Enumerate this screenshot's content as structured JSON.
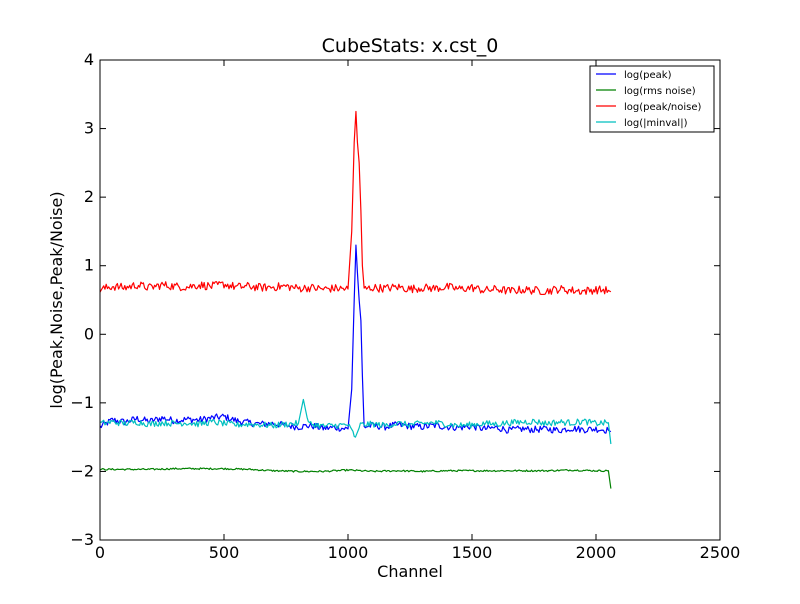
{
  "chart_data": {
    "type": "line",
    "title": "CubeStats: x.cst_0",
    "xlabel": "Channel",
    "ylabel": "log(Peak,Noise,Peak/Noise)",
    "xlim": [
      0,
      2500
    ],
    "ylim": [
      -3,
      4
    ],
    "xticks": [
      0,
      500,
      1000,
      1500,
      2000,
      2500
    ],
    "yticks": [
      -3,
      -2,
      -1,
      0,
      1,
      2,
      3,
      4
    ],
    "xtick_labels": [
      "0",
      "500",
      "1000",
      "1500",
      "2000",
      "2500"
    ],
    "ytick_labels": [
      "−3",
      "−2",
      "−1",
      "0",
      "1",
      "2",
      "3",
      "4"
    ],
    "grid": false,
    "legend_position": "top-right",
    "series": [
      {
        "name": "log(peak)",
        "color": "#0000ff",
        "points": [
          [
            0,
            -1.35
          ],
          [
            50,
            -1.25
          ],
          [
            100,
            -1.28
          ],
          [
            150,
            -1.23
          ],
          [
            200,
            -1.27
          ],
          [
            250,
            -1.22
          ],
          [
            300,
            -1.26
          ],
          [
            350,
            -1.24
          ],
          [
            400,
            -1.25
          ],
          [
            450,
            -1.22
          ],
          [
            500,
            -1.2
          ],
          [
            550,
            -1.26
          ],
          [
            600,
            -1.29
          ],
          [
            650,
            -1.31
          ],
          [
            700,
            -1.3
          ],
          [
            750,
            -1.33
          ],
          [
            800,
            -1.35
          ],
          [
            850,
            -1.33
          ],
          [
            900,
            -1.37
          ],
          [
            950,
            -1.36
          ],
          [
            1000,
            -1.38
          ],
          [
            1015,
            -0.8
          ],
          [
            1025,
            0.5
          ],
          [
            1032,
            1.3
          ],
          [
            1038,
            0.9
          ],
          [
            1045,
            0.5
          ],
          [
            1052,
            0.2
          ],
          [
            1058,
            -0.6
          ],
          [
            1065,
            -1.35
          ],
          [
            1100,
            -1.33
          ],
          [
            1150,
            -1.35
          ],
          [
            1200,
            -1.32
          ],
          [
            1250,
            -1.34
          ],
          [
            1300,
            -1.35
          ],
          [
            1350,
            -1.33
          ],
          [
            1400,
            -1.35
          ],
          [
            1450,
            -1.36
          ],
          [
            1500,
            -1.34
          ],
          [
            1550,
            -1.38
          ],
          [
            1600,
            -1.36
          ],
          [
            1650,
            -1.4
          ],
          [
            1700,
            -1.38
          ],
          [
            1750,
            -1.39
          ],
          [
            1800,
            -1.38
          ],
          [
            1850,
            -1.4
          ],
          [
            1900,
            -1.37
          ],
          [
            1950,
            -1.39
          ],
          [
            2000,
            -1.38
          ],
          [
            2050,
            -1.4
          ],
          [
            2060,
            -1.42
          ]
        ]
      },
      {
        "name": "log(rms noise)",
        "color": "#008000",
        "points": [
          [
            0,
            -1.97
          ],
          [
            100,
            -1.97
          ],
          [
            200,
            -1.97
          ],
          [
            300,
            -1.96
          ],
          [
            400,
            -1.96
          ],
          [
            500,
            -1.96
          ],
          [
            600,
            -1.97
          ],
          [
            700,
            -1.99
          ],
          [
            800,
            -2.0
          ],
          [
            900,
            -2.0
          ],
          [
            1000,
            -1.98
          ],
          [
            1100,
            -2.0
          ],
          [
            1200,
            -1.99
          ],
          [
            1300,
            -2.0
          ],
          [
            1400,
            -1.99
          ],
          [
            1500,
            -1.99
          ],
          [
            1600,
            -1.99
          ],
          [
            1700,
            -1.99
          ],
          [
            1800,
            -1.99
          ],
          [
            1900,
            -1.98
          ],
          [
            2000,
            -1.99
          ],
          [
            2050,
            -1.99
          ],
          [
            2060,
            -2.25
          ]
        ]
      },
      {
        "name": "log(peak/noise)",
        "color": "#ff0000",
        "points": [
          [
            0,
            0.65
          ],
          [
            50,
            0.7
          ],
          [
            100,
            0.68
          ],
          [
            150,
            0.72
          ],
          [
            200,
            0.68
          ],
          [
            250,
            0.72
          ],
          [
            300,
            0.7
          ],
          [
            350,
            0.69
          ],
          [
            400,
            0.72
          ],
          [
            450,
            0.7
          ],
          [
            500,
            0.73
          ],
          [
            550,
            0.69
          ],
          [
            600,
            0.7
          ],
          [
            650,
            0.68
          ],
          [
            700,
            0.69
          ],
          [
            750,
            0.7
          ],
          [
            800,
            0.67
          ],
          [
            850,
            0.68
          ],
          [
            900,
            0.66
          ],
          [
            950,
            0.67
          ],
          [
            1000,
            0.66
          ],
          [
            1015,
            1.5
          ],
          [
            1025,
            2.8
          ],
          [
            1032,
            3.25
          ],
          [
            1038,
            2.8
          ],
          [
            1045,
            2.5
          ],
          [
            1052,
            1.8
          ],
          [
            1058,
            1.0
          ],
          [
            1065,
            0.66
          ],
          [
            1100,
            0.68
          ],
          [
            1150,
            0.67
          ],
          [
            1200,
            0.69
          ],
          [
            1250,
            0.66
          ],
          [
            1300,
            0.68
          ],
          [
            1350,
            0.67
          ],
          [
            1400,
            0.69
          ],
          [
            1450,
            0.66
          ],
          [
            1500,
            0.68
          ],
          [
            1550,
            0.64
          ],
          [
            1600,
            0.66
          ],
          [
            1650,
            0.63
          ],
          [
            1700,
            0.65
          ],
          [
            1750,
            0.64
          ],
          [
            1800,
            0.63
          ],
          [
            1850,
            0.66
          ],
          [
            1900,
            0.64
          ],
          [
            1950,
            0.63
          ],
          [
            2000,
            0.65
          ],
          [
            2050,
            0.64
          ],
          [
            2060,
            0.62
          ]
        ]
      },
      {
        "name": "log(|minval|)",
        "color": "#00bfbf",
        "points": [
          [
            0,
            -1.3
          ],
          [
            50,
            -1.28
          ],
          [
            100,
            -1.3
          ],
          [
            150,
            -1.28
          ],
          [
            200,
            -1.31
          ],
          [
            250,
            -1.29
          ],
          [
            300,
            -1.3
          ],
          [
            350,
            -1.29
          ],
          [
            400,
            -1.31
          ],
          [
            450,
            -1.28
          ],
          [
            500,
            -1.3
          ],
          [
            550,
            -1.32
          ],
          [
            600,
            -1.31
          ],
          [
            650,
            -1.32
          ],
          [
            700,
            -1.33
          ],
          [
            750,
            -1.31
          ],
          [
            800,
            -1.3
          ],
          [
            820,
            -0.95
          ],
          [
            840,
            -1.3
          ],
          [
            900,
            -1.34
          ],
          [
            950,
            -1.33
          ],
          [
            1000,
            -1.32
          ],
          [
            1030,
            -1.5
          ],
          [
            1050,
            -1.32
          ],
          [
            1100,
            -1.31
          ],
          [
            1150,
            -1.33
          ],
          [
            1200,
            -1.3
          ],
          [
            1250,
            -1.32
          ],
          [
            1300,
            -1.3
          ],
          [
            1350,
            -1.29
          ],
          [
            1400,
            -1.31
          ],
          [
            1450,
            -1.33
          ],
          [
            1500,
            -1.32
          ],
          [
            1550,
            -1.3
          ],
          [
            1600,
            -1.31
          ],
          [
            1650,
            -1.29
          ],
          [
            1700,
            -1.28
          ],
          [
            1750,
            -1.27
          ],
          [
            1800,
            -1.3
          ],
          [
            1850,
            -1.28
          ],
          [
            1900,
            -1.29
          ],
          [
            1950,
            -1.27
          ],
          [
            2000,
            -1.3
          ],
          [
            2050,
            -1.29
          ],
          [
            2060,
            -1.6
          ]
        ]
      }
    ]
  }
}
